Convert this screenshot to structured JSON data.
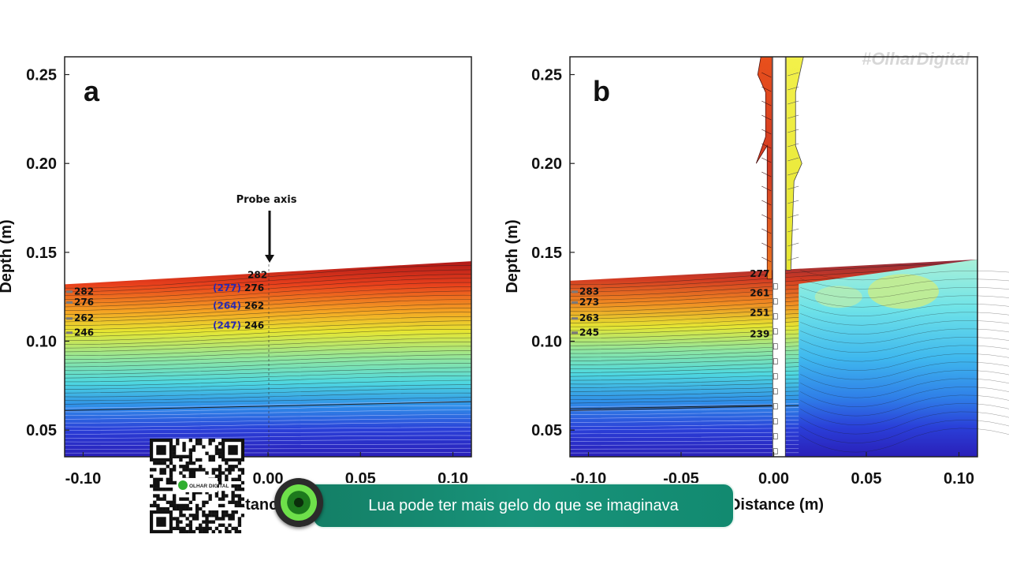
{
  "watermark": "#OlharDigital",
  "ticker": {
    "text": "Lua pode ter mais gelo do que se imaginava"
  },
  "qr_logo_text": "OLHAR DIGITAL",
  "chart_data": [
    {
      "type": "heatmap",
      "panel_label": "a",
      "ylabel": "Depth (m)",
      "xlabel": "Distance (m)",
      "xlim": [
        -0.11,
        0.11
      ],
      "ylim": [
        0.035,
        0.26
      ],
      "xticks": [
        "-0.10",
        "0.00",
        "0.05",
        "0.10"
      ],
      "yticks": [
        "0.05",
        "0.10",
        "0.15",
        "0.20",
        "0.25"
      ],
      "surface_depth": {
        "x": [
          -0.11,
          0.11
        ],
        "y": [
          0.132,
          0.145
        ]
      },
      "annotation_probe": "Probe axis",
      "labels_left": [
        "282",
        "276",
        "262",
        "246"
      ],
      "labels_probe_top": "282",
      "labels_probe": [
        "276",
        "262",
        "246"
      ],
      "labels_probe_parenthesized": [
        "(277)",
        "(264)",
        "(247)"
      ],
      "colormap": "jet, red at surface to blue at depth"
    },
    {
      "type": "heatmap",
      "panel_label": "b",
      "ylabel": "Depth (m)",
      "xlabel": "Distance (m)",
      "xlim": [
        -0.11,
        0.11
      ],
      "ylim": [
        0.035,
        0.26
      ],
      "xticks": [
        "-0.10",
        "-0.05",
        "0.00",
        "0.05",
        "0.10"
      ],
      "yticks": [
        "0.05",
        "0.10",
        "0.15",
        "0.20",
        "0.25"
      ],
      "surface_depth": {
        "x": [
          -0.11,
          0.11
        ],
        "y": [
          0.134,
          0.146
        ]
      },
      "labels_left": [
        "283",
        "273",
        "263",
        "245"
      ],
      "labels_probe": [
        "277",
        "261",
        "251",
        "239"
      ],
      "colormap": "jet, red at surface to blue at depth"
    }
  ]
}
